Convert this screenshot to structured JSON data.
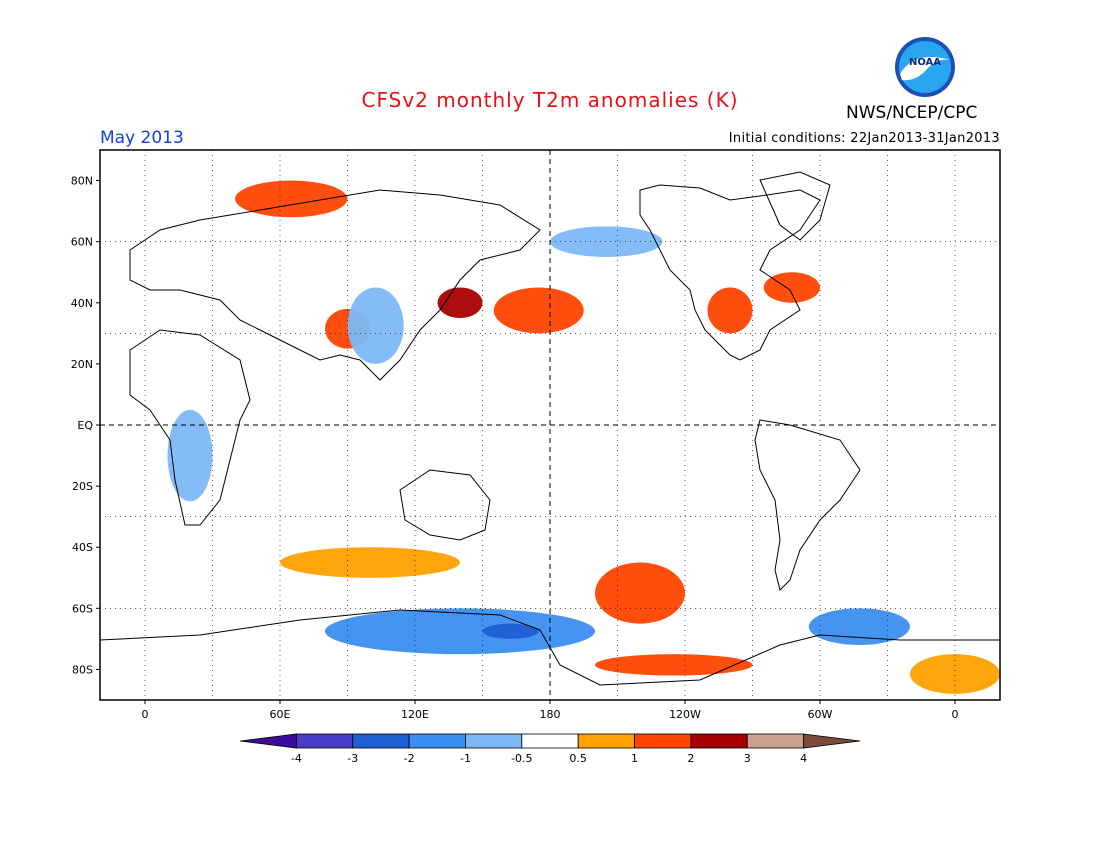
{
  "header": {
    "title": "CFSv2 monthly T2m anomalies (K)",
    "agency": "NWS/NCEP/CPC",
    "month": "May 2013",
    "initial_conditions": "Initial conditions: 22Jan2013-31Jan2013"
  },
  "logo": {
    "text": "NOAA",
    "icon": "noaa-logo-icon"
  },
  "map": {
    "projection": "cylindrical equidistant, centered on 180",
    "lon_range": [
      -20,
      380
    ],
    "lat_range": [
      -90,
      90
    ],
    "lat_ticks": [
      {
        "lat": 80,
        "label": "80N"
      },
      {
        "lat": 60,
        "label": "60N"
      },
      {
        "lat": 40,
        "label": "40N"
      },
      {
        "lat": 20,
        "label": "20N"
      },
      {
        "lat": 0,
        "label": "EQ"
      },
      {
        "lat": -20,
        "label": "20S"
      },
      {
        "lat": -40,
        "label": "40S"
      },
      {
        "lat": -60,
        "label": "60S"
      },
      {
        "lat": -80,
        "label": "80S"
      }
    ],
    "lon_ticks": [
      {
        "lon": 0,
        "label": "0"
      },
      {
        "lon": 60,
        "label": "60E"
      },
      {
        "lon": 120,
        "label": "120E"
      },
      {
        "lon": 180,
        "label": "180"
      },
      {
        "lon": 240,
        "label": "120W"
      },
      {
        "lon": 300,
        "label": "60W"
      },
      {
        "lon": 360,
        "label": "0"
      }
    ],
    "gridlines": "dotted every 30 degrees; dashed at equator and 180"
  },
  "colorbar": {
    "labels": [
      "-4",
      "-3",
      "-2",
      "-1",
      "-0.5",
      "0.5",
      "1",
      "2",
      "3",
      "4"
    ],
    "colors": [
      "#3c0c9a",
      "#4b3dc8",
      "#1f5fd4",
      "#3c8ef0",
      "#7cb8f6",
      "#ffffff",
      "#ffa000",
      "#ff4500",
      "#a80000",
      "#c8a090",
      "#7a4a3a"
    ]
  },
  "chart_data": {
    "type": "heatmap",
    "title": "CFSv2 monthly T2m anomalies (K)",
    "valid_month": "May 2013",
    "units": "K",
    "levels": [
      -4,
      -3,
      -2,
      -1,
      -0.5,
      0.5,
      1,
      2,
      3,
      4
    ],
    "anomaly_regions": [
      {
        "region": "Antarctic coast 80E-200E",
        "lon": [
          80,
          200
        ],
        "lat": [
          -75,
          -60
        ],
        "value": -1.5
      },
      {
        "region": "Ross Sea area",
        "lon": [
          150,
          175
        ],
        "lat": [
          -70,
          -65
        ],
        "value": -3
      },
      {
        "region": "Weddell Sea sector",
        "lon": [
          295,
          340
        ],
        "lat": [
          -72,
          -60
        ],
        "value": -1.5
      },
      {
        "region": "Southeast Pacific 55S",
        "lon": [
          200,
          240
        ],
        "lat": [
          -65,
          -45
        ],
        "value": 1.5
      },
      {
        "region": "West Antarctica",
        "lon": [
          200,
          270
        ],
        "lat": [
          -82,
          -75
        ],
        "value": 1.5
      },
      {
        "region": "East Antarctica 0-20E",
        "lon": [
          340,
          380
        ],
        "lat": [
          -88,
          -75
        ],
        "value": 0.8
      },
      {
        "region": "Japan / Northwest Pacific",
        "lon": [
          130,
          150
        ],
        "lat": [
          35,
          45
        ],
        "value": 2.5
      },
      {
        "region": "North Pacific 45N",
        "lon": [
          155,
          195
        ],
        "lat": [
          30,
          45
        ],
        "value": 1.2
      },
      {
        "region": "Tibetan Plateau",
        "lon": [
          80,
          100
        ],
        "lat": [
          25,
          38
        ],
        "value": 1.5
      },
      {
        "region": "Northern Russia",
        "lon": [
          40,
          90
        ],
        "lat": [
          68,
          80
        ],
        "value": 1.5
      },
      {
        "region": "Bering Sea / Alaska",
        "lon": [
          180,
          230
        ],
        "lat": [
          55,
          65
        ],
        "value": -0.8
      },
      {
        "region": "Central China",
        "lon": [
          90,
          115
        ],
        "lat": [
          20,
          45
        ],
        "value": -0.8
      },
      {
        "region": "Southern Africa",
        "lon": [
          10,
          30
        ],
        "lat": [
          -25,
          5
        ],
        "value": -0.8
      },
      {
        "region": "Central USA",
        "lon": [
          250,
          270
        ],
        "lat": [
          30,
          45
        ],
        "value": 1.5
      },
      {
        "region": "Eastern Canada",
        "lon": [
          275,
          300
        ],
        "lat": [
          40,
          50
        ],
        "value": 1.2
      },
      {
        "region": "Southern Ocean 40S Indian",
        "lon": [
          60,
          140
        ],
        "lat": [
          -50,
          -40
        ],
        "value": 0.8
      }
    ]
  }
}
